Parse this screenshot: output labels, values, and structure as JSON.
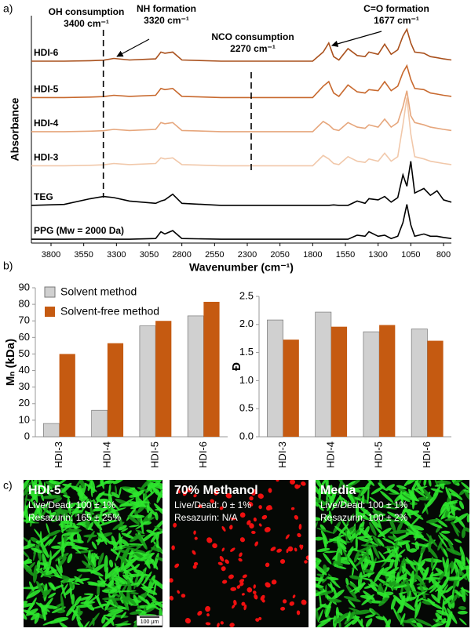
{
  "chart_data": [
    {
      "type": "line",
      "label": "a)",
      "xlabel": "Wavenumber (cm⁻¹)",
      "ylabel": "Absorbance",
      "xlim": [
        3950,
        740
      ],
      "xticks": [
        3800,
        3550,
        3300,
        3050,
        2800,
        2550,
        2300,
        2050,
        1800,
        1550,
        1300,
        1050,
        800
      ],
      "ylim": [
        0,
        10
      ],
      "x": [
        3950,
        3700,
        3500,
        3400,
        3320,
        3200,
        3000,
        2960,
        2930,
        2870,
        2800,
        2500,
        2270,
        2000,
        1800,
        1720,
        1677,
        1640,
        1600,
        1530,
        1460,
        1400,
        1370,
        1300,
        1250,
        1200,
        1150,
        1110,
        1080,
        1050,
        1020,
        950,
        900,
        850,
        800,
        740
      ],
      "series": [
        {
          "name": "HDI-6",
          "color": "#a9501c",
          "values": [
            8.0,
            8.0,
            8.02,
            8.04,
            8.12,
            8.05,
            8.1,
            8.4,
            8.35,
            8.4,
            8.05,
            8.0,
            8.0,
            8.0,
            8.0,
            8.4,
            8.8,
            8.2,
            8.05,
            8.55,
            8.25,
            8.2,
            8.4,
            8.3,
            8.75,
            8.3,
            8.5,
            9.1,
            9.4,
            8.8,
            8.4,
            8.35,
            8.2,
            8.15,
            8.1,
            8.05
          ]
        },
        {
          "name": "HDI-5",
          "color": "#c8692e",
          "values": [
            6.4,
            6.4,
            6.42,
            6.44,
            6.5,
            6.45,
            6.5,
            6.8,
            6.75,
            6.8,
            6.45,
            6.4,
            6.4,
            6.4,
            6.4,
            6.9,
            7.1,
            6.6,
            6.45,
            6.95,
            6.65,
            6.6,
            6.75,
            6.7,
            7.1,
            6.7,
            6.9,
            7.5,
            7.8,
            7.2,
            6.8,
            6.75,
            6.6,
            6.55,
            6.5,
            6.45
          ]
        },
        {
          "name": "HDI-4",
          "color": "#e6a67c",
          "values": [
            4.9,
            4.9,
            4.92,
            4.94,
            5.0,
            4.95,
            5.0,
            5.3,
            5.25,
            5.3,
            4.95,
            4.9,
            4.9,
            4.9,
            4.9,
            5.35,
            5.2,
            5.0,
            4.95,
            5.3,
            5.1,
            5.05,
            5.2,
            5.1,
            5.45,
            5.1,
            5.3,
            6.0,
            6.7,
            5.6,
            5.3,
            5.2,
            5.1,
            5.05,
            5.0,
            4.95
          ]
        },
        {
          "name": "HDI-3",
          "color": "#f1c8aa",
          "values": [
            3.4,
            3.4,
            3.42,
            3.44,
            3.5,
            3.45,
            3.5,
            3.75,
            3.7,
            3.75,
            3.45,
            3.4,
            3.4,
            3.4,
            3.4,
            3.85,
            3.7,
            3.5,
            3.45,
            3.8,
            3.6,
            3.55,
            3.7,
            3.6,
            3.95,
            3.6,
            3.8,
            5.2,
            6.4,
            4.8,
            3.8,
            3.7,
            3.6,
            3.55,
            3.5,
            3.45
          ]
        },
        {
          "name": "TEG",
          "color": "#000000",
          "values": [
            1.66,
            1.7,
            1.95,
            2.05,
            2.0,
            1.85,
            1.75,
            1.85,
            1.9,
            2.15,
            1.75,
            1.66,
            1.66,
            1.66,
            1.66,
            1.66,
            1.66,
            1.68,
            1.66,
            1.66,
            1.85,
            1.75,
            1.95,
            1.9,
            2.05,
            1.8,
            2.0,
            3.0,
            2.5,
            3.6,
            2.2,
            2.4,
            2.1,
            2.3,
            1.9,
            1.8
          ]
        },
        {
          "name": "PPG (Mw = 2000 Da)",
          "color": "#000000",
          "values": [
            0.17,
            0.17,
            0.18,
            0.18,
            0.17,
            0.17,
            0.2,
            0.5,
            0.4,
            0.55,
            0.2,
            0.17,
            0.17,
            0.17,
            0.17,
            0.17,
            0.17,
            0.17,
            0.17,
            0.17,
            0.35,
            0.3,
            0.5,
            0.3,
            0.35,
            0.2,
            0.3,
            0.9,
            1.7,
            0.8,
            0.3,
            0.4,
            0.3,
            0.3,
            0.25,
            0.2
          ]
        }
      ],
      "annotations": [
        {
          "title": "OH consumption",
          "label": "3400 cm⁻¹",
          "x": 3400
        },
        {
          "title": "NH formation",
          "label": "3320 cm⁻¹",
          "x": 3320
        },
        {
          "title": "NCO consumption",
          "label": "2270 cm⁻¹",
          "x": 2270
        },
        {
          "title": "C=O formation",
          "label": "1677 cm⁻¹",
          "x": 1677
        }
      ]
    },
    {
      "type": "bar",
      "label": "b)",
      "ylabel": "Mₙ (kDa)",
      "categories": [
        "HDI-3",
        "HDI-4",
        "HDI-5",
        "HDI-6"
      ],
      "ylim": [
        0,
        90
      ],
      "yticks": [
        0,
        10,
        20,
        30,
        40,
        50,
        60,
        70,
        80,
        90
      ],
      "legend": "upper left",
      "series": [
        {
          "name": "Solvent method",
          "color": "#d0d0d0",
          "values": [
            8,
            16,
            67,
            73
          ]
        },
        {
          "name": "Solvent-free method",
          "color": "#c55a11",
          "values": [
            50,
            56.5,
            70,
            81.5
          ]
        }
      ]
    },
    {
      "type": "bar",
      "ylabel": "Đ",
      "categories": [
        "HDI-3",
        "HDI-4",
        "HDI-5",
        "HDI-6"
      ],
      "ylim": [
        0,
        2.5
      ],
      "yticks": [
        {
          "value": 0,
          "label": "0.0"
        },
        0.5,
        {
          "value": 1,
          "label": "1.0"
        },
        1.5,
        {
          "value": 2,
          "label": "2.0"
        },
        2.5
      ],
      "series": [
        {
          "color": "#d0d0d0",
          "values": [
            2.08,
            2.22,
            1.87,
            1.92
          ]
        },
        {
          "color": "#c55a11",
          "values": [
            1.73,
            1.96,
            1.99,
            1.71
          ]
        }
      ]
    }
  ],
  "images": {
    "label": "c)",
    "scale_bar": "100 μm",
    "panels": [
      {
        "title": "HDI-5",
        "live_dead": "Live/Dead: 100 ± 1%",
        "resazurin": "Resazurin:  165 ± 25%"
      },
      {
        "title": "70% Methanol",
        "live_dead": "Live/Dead: 0 ± 1%",
        "resazurin": "Resazurin: N/A"
      },
      {
        "title": "Media",
        "live_dead": "Live/Dead: 100 ± 1%",
        "resazurin": "Resazurin:  100 ± 2%"
      }
    ]
  }
}
